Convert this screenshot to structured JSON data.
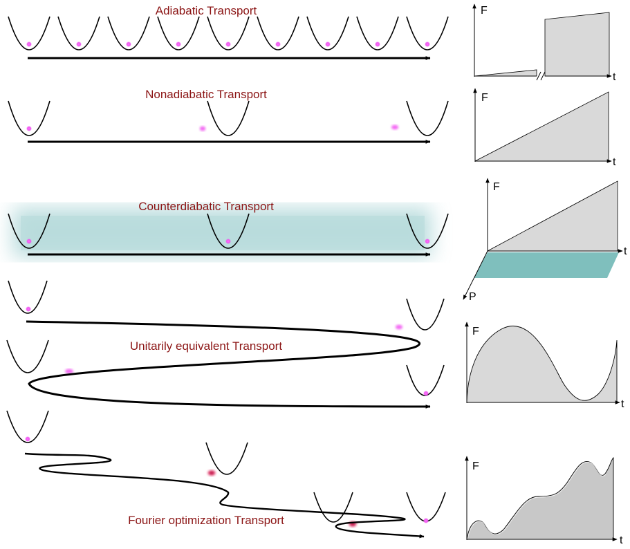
{
  "panels": [
    {
      "title": "Adiabatic Transport"
    },
    {
      "title": "Nonadiabatic Transport"
    },
    {
      "title": "Counterdiabatic Transport"
    },
    {
      "title": "Unitarily equivalent Transport"
    },
    {
      "title": "Fourier optimization Transport"
    }
  ],
  "graphs": {
    "f_label": "F",
    "t_label": "t",
    "p_label": "P"
  },
  "colors": {
    "title": "#8b1414",
    "particle": "#ee55ee",
    "graph_fill": "#d9d9d9",
    "graph_fill_dark": "#c8c8c8",
    "glow": "#9fcfd0",
    "plane": "#7fbfbd"
  }
}
